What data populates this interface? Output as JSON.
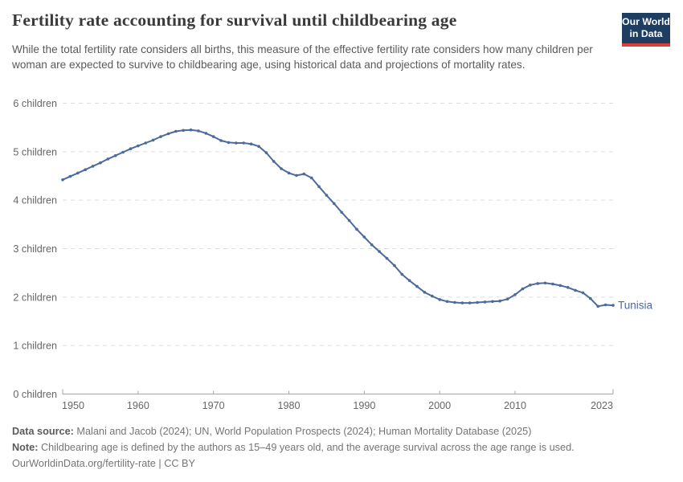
{
  "header": {
    "title": "Fertility rate accounting for survival until childbearing age",
    "subtitle": "While the total fertility rate considers all births, this measure of the effective fertility rate considers how many children per woman are expected to survive to childbearing age, using historical data and projections of mortality rates.",
    "logo_line1": "Our World",
    "logo_line2": "in Data",
    "logo_colors": {
      "background": "#1d3d63",
      "accent": "#dc3e32"
    }
  },
  "chart_data": {
    "type": "line",
    "title": "Fertility rate accounting for survival until childbearing age",
    "xlabel": "",
    "ylabel": "",
    "xlim": [
      1950,
      2023
    ],
    "ylim": [
      0,
      6
    ],
    "grid": "horizontal-dashed",
    "legend": "end-of-line-label",
    "x_ticks": [
      {
        "value": 1950,
        "label": "1950"
      },
      {
        "value": 1960,
        "label": "1960"
      },
      {
        "value": 1970,
        "label": "1970"
      },
      {
        "value": 1980,
        "label": "1980"
      },
      {
        "value": 1990,
        "label": "1990"
      },
      {
        "value": 2000,
        "label": "2000"
      },
      {
        "value": 2010,
        "label": "2010"
      },
      {
        "value": 2023,
        "label": "2023"
      }
    ],
    "y_ticks": [
      {
        "value": 0,
        "label": "0 children"
      },
      {
        "value": 1,
        "label": "1 children"
      },
      {
        "value": 2,
        "label": "2 children"
      },
      {
        "value": 3,
        "label": "3 children"
      },
      {
        "value": 4,
        "label": "4 children"
      },
      {
        "value": 5,
        "label": "5 children"
      },
      {
        "value": 6,
        "label": "6 children"
      }
    ],
    "series": [
      {
        "name": "Tunisia",
        "color": "#4C6A9C",
        "x": [
          1950,
          1951,
          1952,
          1953,
          1954,
          1955,
          1956,
          1957,
          1958,
          1959,
          1960,
          1961,
          1962,
          1963,
          1964,
          1965,
          1966,
          1967,
          1968,
          1969,
          1970,
          1971,
          1972,
          1973,
          1974,
          1975,
          1976,
          1977,
          1978,
          1979,
          1980,
          1981,
          1982,
          1983,
          1984,
          1985,
          1986,
          1987,
          1988,
          1989,
          1990,
          1991,
          1992,
          1993,
          1994,
          1995,
          1996,
          1997,
          1998,
          1999,
          2000,
          2001,
          2002,
          2003,
          2004,
          2005,
          2006,
          2007,
          2008,
          2009,
          2010,
          2011,
          2012,
          2013,
          2014,
          2015,
          2016,
          2017,
          2018,
          2019,
          2020,
          2021,
          2022,
          2023
        ],
        "values": [
          4.42,
          4.49,
          4.56,
          4.63,
          4.7,
          4.77,
          4.85,
          4.92,
          4.99,
          5.06,
          5.12,
          5.18,
          5.24,
          5.31,
          5.37,
          5.42,
          5.44,
          5.45,
          5.43,
          5.38,
          5.31,
          5.23,
          5.19,
          5.18,
          5.18,
          5.16,
          5.11,
          4.98,
          4.8,
          4.65,
          4.56,
          4.51,
          4.54,
          4.46,
          4.28,
          4.1,
          3.93,
          3.75,
          3.58,
          3.4,
          3.24,
          3.08,
          2.94,
          2.8,
          2.65,
          2.47,
          2.34,
          2.22,
          2.1,
          2.02,
          1.95,
          1.91,
          1.89,
          1.88,
          1.88,
          1.89,
          1.9,
          1.91,
          1.92,
          1.96,
          2.05,
          2.17,
          2.25,
          2.28,
          2.29,
          2.27,
          2.24,
          2.2,
          2.14,
          2.09,
          1.97,
          1.81,
          1.84,
          1.83
        ]
      }
    ]
  },
  "footer": {
    "data_source_label": "Data source:",
    "data_source": "Malani and Jacob (2024); UN, World Population Prospects (2024); Human Mortality Database (2025)",
    "note_label": "Note:",
    "note": "Childbearing age is defined by the authors as 15–49 years old, and the average survival across the age range is used.",
    "license": "OurWorldinData.org/fertility-rate | CC BY"
  }
}
